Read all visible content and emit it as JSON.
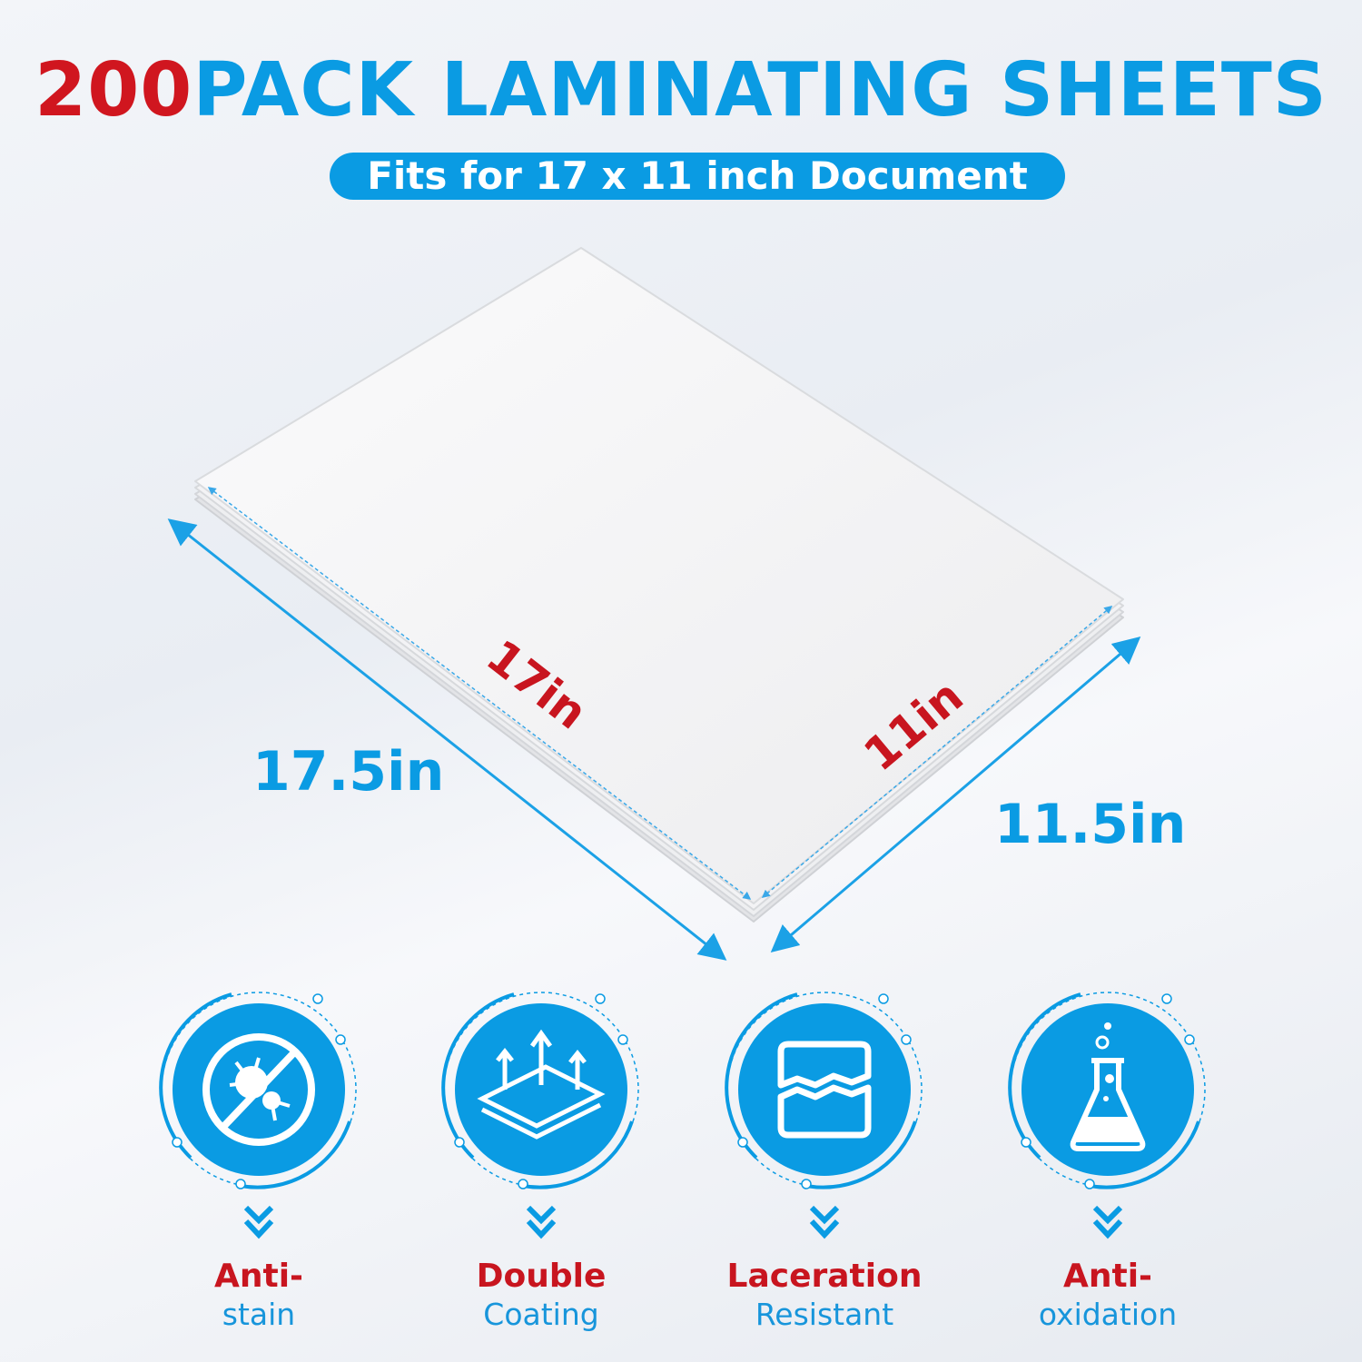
{
  "title": {
    "count": "200",
    "rest": "PACK LAMINATING SHEETS"
  },
  "subtitle": "Fits for 17 x 11 inch Document",
  "dimensions": {
    "inner_length": "17in",
    "inner_width": "11in",
    "outer_length": "17.5in",
    "outer_width": "11.5in"
  },
  "features": [
    {
      "icon": "no-germ-icon",
      "line1": "Anti-",
      "line2": "stain"
    },
    {
      "icon": "layers-arrows-icon",
      "line1": "Double",
      "line2": "Coating"
    },
    {
      "icon": "torn-sheet-icon",
      "line1": "Laceration",
      "line2": "Resistant"
    },
    {
      "icon": "flask-icon",
      "line1": "Anti-",
      "line2": "oxidation"
    }
  ],
  "colors": {
    "accent_blue": "#0a9be3",
    "accent_red": "#d0161f"
  }
}
